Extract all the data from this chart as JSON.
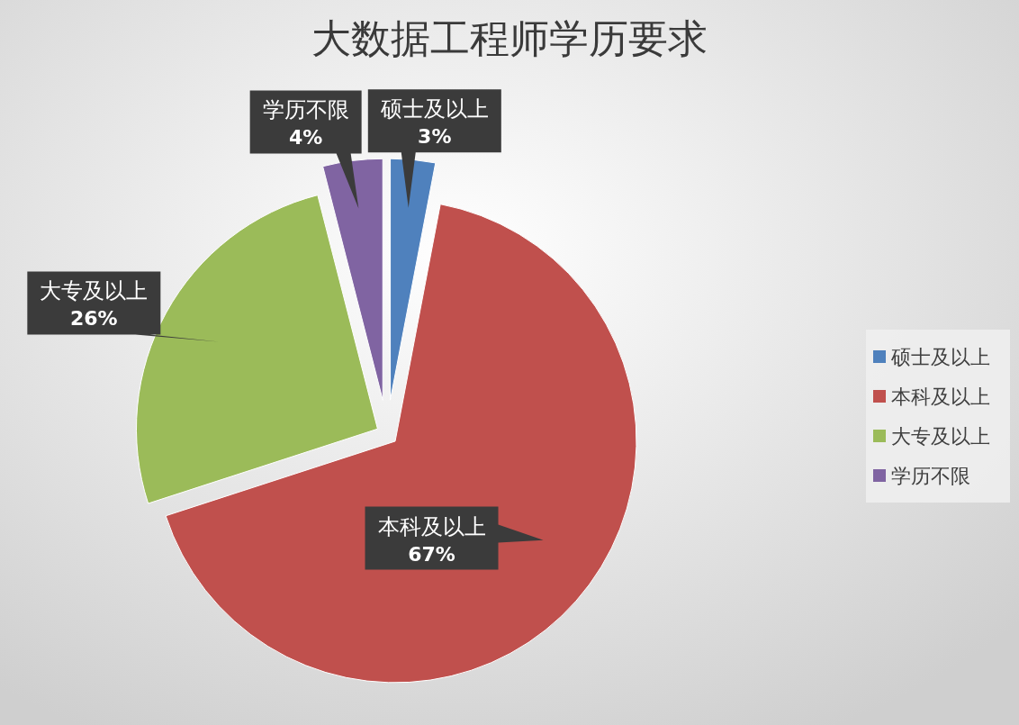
{
  "chart_data": {
    "type": "pie",
    "title": "大数据工程师学历要求",
    "categories": [
      "硕士及以上",
      "本科及以上",
      "大专及以上",
      "学历不限"
    ],
    "values": [
      3,
      67,
      26,
      4
    ],
    "colors": [
      "#4f81bd",
      "#c0504d",
      "#9bbb59",
      "#8064a2"
    ],
    "value_labels": [
      "3%",
      "67%",
      "26%",
      "4%"
    ],
    "legend": "right"
  }
}
